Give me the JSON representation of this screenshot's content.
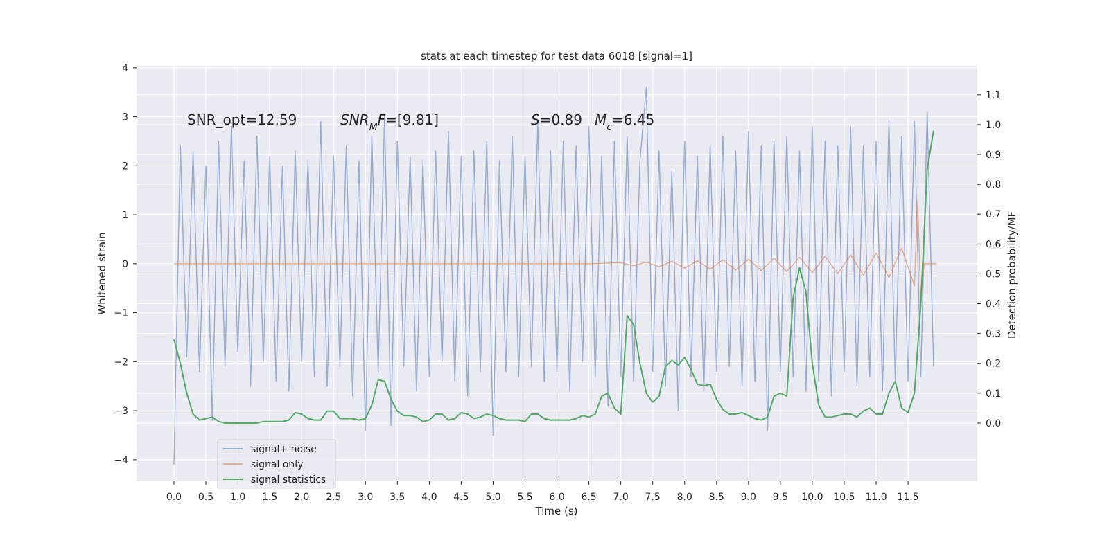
{
  "chart_data": {
    "type": "line",
    "title": "stats at each timestep for test data 6018 [signal=1]",
    "x_label": "Time (s)",
    "y_label": "Whitened strain",
    "y2_label": "Detection probability/MF",
    "grid": true,
    "legend_position": "lower left",
    "xlim": [
      -0.586,
      12.585
    ],
    "ylim": [
      -4.44,
      4.04
    ],
    "y2lim": [
      -0.195,
      1.197
    ],
    "xticks": [
      {
        "value": 0,
        "label": "0.0"
      },
      0.5,
      {
        "value": 1,
        "label": "1.0"
      },
      1.5,
      {
        "value": 2,
        "label": "2.0"
      },
      2.5,
      {
        "value": 3,
        "label": "3.0"
      },
      3.5,
      {
        "value": 4,
        "label": "4.0"
      },
      4.5,
      {
        "value": 5,
        "label": "5.0"
      },
      5.5,
      {
        "value": 6,
        "label": "6.0"
      },
      6.5,
      {
        "value": 7,
        "label": "7.0"
      },
      7.5,
      {
        "value": 8,
        "label": "8.0"
      },
      8.5,
      {
        "value": 9,
        "label": "9.0"
      },
      9.5,
      {
        "value": 10,
        "label": "10.0"
      },
      10.5,
      {
        "value": 11,
        "label": "11.0"
      },
      11.5
    ],
    "yticks": [
      {
        "value": -4,
        "label": "−4"
      },
      {
        "value": -3,
        "label": "−3"
      },
      {
        "value": -2,
        "label": "−2"
      },
      {
        "value": -1,
        "label": "−1"
      },
      0,
      1,
      2,
      3,
      4
    ],
    "y2ticks": [
      {
        "value": 0,
        "label": "0.0"
      },
      0.1,
      0.2,
      0.3,
      0.4,
      0.5,
      0.6,
      0.7,
      0.8,
      0.9,
      {
        "value": 1,
        "label": "1.0"
      },
      1.1
    ],
    "annotations": [
      [
        {
          "text": "SNR_opt=12.59",
          "style": "normal"
        }
      ],
      [
        {
          "text": "SNR",
          "style": "italic"
        },
        {
          "text": "M",
          "style": "italic-sub"
        },
        {
          "text": "F",
          "style": "italic"
        },
        {
          "text": "=[9.81]",
          "style": "normal"
        }
      ],
      [
        {
          "text": "S",
          "style": "italic"
        },
        {
          "text": "=0.89",
          "style": "normal"
        }
      ],
      [
        {
          "text": "M",
          "style": "italic"
        },
        {
          "text": "c",
          "style": "italic-sub"
        },
        {
          "text": "=6.45",
          "style": "normal"
        }
      ]
    ],
    "x": [
      0,
      0.1,
      0.2,
      0.3,
      0.4,
      0.5,
      0.6,
      0.7,
      0.8,
      0.9,
      1,
      1.1,
      1.2,
      1.3,
      1.4,
      1.5,
      1.6,
      1.7,
      1.8,
      1.9,
      2,
      2.1,
      2.2,
      2.3,
      2.4,
      2.5,
      2.6,
      2.7,
      2.8,
      2.9,
      3,
      3.1,
      3.2,
      3.3,
      3.4,
      3.5,
      3.6,
      3.7,
      3.8,
      3.9,
      4,
      4.1,
      4.2,
      4.3,
      4.4,
      4.5,
      4.6,
      4.7,
      4.8,
      4.9,
      5,
      5.1,
      5.2,
      5.3,
      5.4,
      5.5,
      5.6,
      5.7,
      5.8,
      5.9,
      6,
      6.1,
      6.2,
      6.3,
      6.4,
      6.5,
      6.6,
      6.7,
      6.8,
      6.9,
      7,
      7.1,
      7.2,
      7.3,
      7.4,
      7.5,
      7.6,
      7.7,
      7.8,
      7.9,
      8,
      8.1,
      8.2,
      8.3,
      8.4,
      8.5,
      8.6,
      8.7,
      8.8,
      8.9,
      9,
      9.1,
      9.2,
      9.3,
      9.4,
      9.5,
      9.6,
      9.7,
      9.8,
      9.9,
      10,
      10.1,
      10.2,
      10.3,
      10.4,
      10.5,
      10.6,
      10.7,
      10.8,
      10.9,
      11,
      11.1,
      11.2,
      11.3,
      11.4,
      11.5,
      11.6,
      11.7,
      11.8,
      11.9
    ],
    "series": [
      {
        "name": "signal+ noise",
        "color": "#4c72b0",
        "alpha": 0.5,
        "values": [
          -4.1,
          2.4,
          -1.9,
          2.3,
          -2.2,
          2.0,
          -3.2,
          2.5,
          -2.1,
          2.8,
          -1.8,
          2.1,
          -2.5,
          2.6,
          -2.0,
          2.2,
          -2.4,
          2.0,
          -2.6,
          2.3,
          -2.0,
          2.1,
          -2.3,
          2.9,
          -2.5,
          2.2,
          -2.1,
          2.4,
          -2.7,
          2.1,
          -3.4,
          2.6,
          -2.2,
          3.0,
          -3.3,
          2.5,
          -2.1,
          2.2,
          -2.6,
          2.1,
          -2.3,
          2.3,
          -2.0,
          2.7,
          -2.4,
          2.2,
          -2.7,
          2.3,
          -2.2,
          2.5,
          -3.5,
          2.1,
          -2.2,
          2.6,
          -2.3,
          2.2,
          -2.1,
          2.9,
          -2.4,
          2.3,
          -2.2,
          2.5,
          -2.6,
          2.4,
          -2.0,
          2.8,
          -2.3,
          2.2,
          -2.9,
          2.5,
          -2.3,
          2.6,
          -2.4,
          2.1,
          3.6,
          -2.2,
          2.3,
          -2.5,
          1.9,
          -3.0,
          2.5,
          -2.3,
          2.2,
          -2.6,
          2.4,
          -2.2,
          2.6,
          -2.1,
          2.3,
          -2.5,
          2.7,
          -2.4,
          2.4,
          -3.4,
          2.5,
          -2.2,
          2.6,
          -2.3,
          2.3,
          -2.6,
          2.8,
          -2.4,
          2.5,
          -2.7,
          2.4,
          -2.2,
          2.8,
          -2.5,
          2.4,
          -2.3,
          2.5,
          -2.6,
          2.9,
          -2.4,
          2.6,
          -2.4,
          2.9,
          -2.3,
          3.1,
          -2.1
        ]
      },
      {
        "name": "signal only",
        "color": "#dd8452",
        "alpha": 0.6,
        "x": [
          0,
          6.5,
          7,
          7.2,
          7.4,
          7.6,
          7.8,
          8,
          8.2,
          8.4,
          8.6,
          8.8,
          9,
          9.2,
          9.4,
          9.6,
          9.8,
          10,
          10.2,
          10.4,
          10.6,
          10.8,
          11,
          11.2,
          11.4,
          11.6,
          11.65,
          11.7,
          11.75,
          11.95
        ],
        "values": [
          0,
          0,
          0.02,
          -0.04,
          0.03,
          -0.06,
          0.05,
          -0.09,
          0.06,
          -0.11,
          0.08,
          -0.13,
          0.09,
          -0.14,
          0.11,
          -0.16,
          0.13,
          -0.18,
          0.15,
          -0.2,
          0.18,
          -0.23,
          0.22,
          -0.28,
          0.32,
          -0.45,
          1.3,
          -0.8,
          0,
          0
        ]
      },
      {
        "name": "signal statistics",
        "color": "#55a868",
        "alpha": 1,
        "axis": "y2",
        "values": [
          0.28,
          0.2,
          0.1,
          0.03,
          0.01,
          0.015,
          0.02,
          0.005,
          0,
          0,
          0,
          0,
          0,
          0,
          0.005,
          0.005,
          0.005,
          0.005,
          0.01,
          0.035,
          0.03,
          0.015,
          0.01,
          0.01,
          0.04,
          0.04,
          0.015,
          0.015,
          0.015,
          0.01,
          0.015,
          0.06,
          0.145,
          0.14,
          0.08,
          0.04,
          0.025,
          0.025,
          0.02,
          0.005,
          0.01,
          0.03,
          0.03,
          0.01,
          0.015,
          0.035,
          0.03,
          0.015,
          0.02,
          0.03,
          0.025,
          0.015,
          0.01,
          0.01,
          0.01,
          0.005,
          0.03,
          0.03,
          0.015,
          0.01,
          0.01,
          0.01,
          0.01,
          0.015,
          0.025,
          0.02,
          0.03,
          0.09,
          0.1,
          0.05,
          0.03,
          0.36,
          0.33,
          0.2,
          0.1,
          0.07,
          0.09,
          0.19,
          0.21,
          0.195,
          0.22,
          0.18,
          0.13,
          0.125,
          0.13,
          0.08,
          0.045,
          0.03,
          0.03,
          0.035,
          0.025,
          0.015,
          0.01,
          0.02,
          0.09,
          0.1,
          0.09,
          0.42,
          0.52,
          0.44,
          0.2,
          0.06,
          0.02,
          0.02,
          0.025,
          0.03,
          0.03,
          0.02,
          0.04,
          0.05,
          0.03,
          0.03,
          0.1,
          0.14,
          0.05,
          0.035,
          0.1,
          0.4,
          0.85,
          0.98
        ]
      }
    ]
  }
}
